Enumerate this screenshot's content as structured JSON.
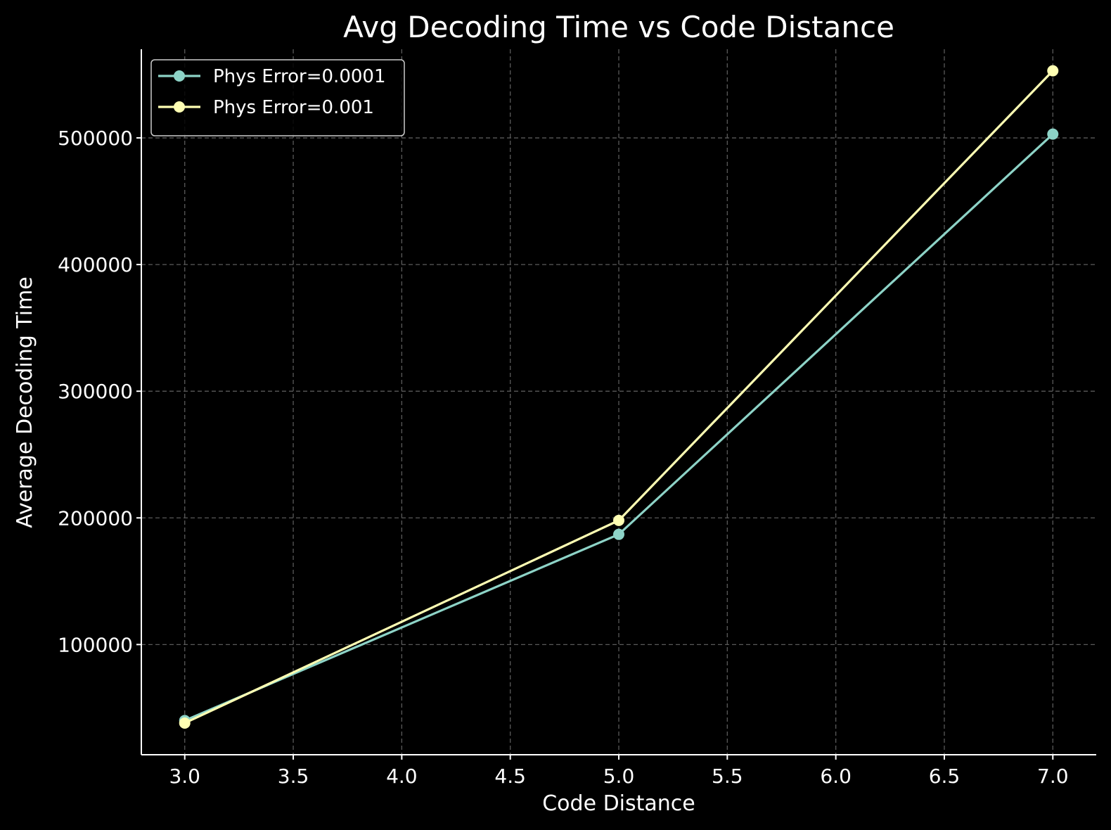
{
  "chart_data": {
    "type": "line",
    "title": "Avg Decoding Time vs Code Distance",
    "xlabel": "Code Distance",
    "ylabel": "Average Decoding Time",
    "xlim": [
      2.8,
      7.2
    ],
    "ylim": [
      13000,
      570000
    ],
    "x_ticks": [
      3.0,
      3.5,
      4.0,
      4.5,
      5.0,
      5.5,
      6.0,
      6.5,
      7.0
    ],
    "x_tick_labels": [
      "3.0",
      "3.5",
      "4.0",
      "4.5",
      "5.0",
      "5.5",
      "6.0",
      "6.5",
      "7.0"
    ],
    "y_ticks": [
      100000,
      200000,
      300000,
      400000,
      500000
    ],
    "y_tick_labels": [
      "100000",
      "200000",
      "300000",
      "400000",
      "500000"
    ],
    "grid": true,
    "legend_position": "top-left",
    "series": [
      {
        "name": "Phys Error=0.0001",
        "color": "#8dd3c7",
        "x": [
          3,
          5,
          7
        ],
        "y": [
          40000,
          187000,
          503000
        ]
      },
      {
        "name": "Phys Error=0.001",
        "color": "#ffffb3",
        "x": [
          3,
          5,
          7
        ],
        "y": [
          38000,
          198000,
          553000
        ]
      }
    ]
  }
}
